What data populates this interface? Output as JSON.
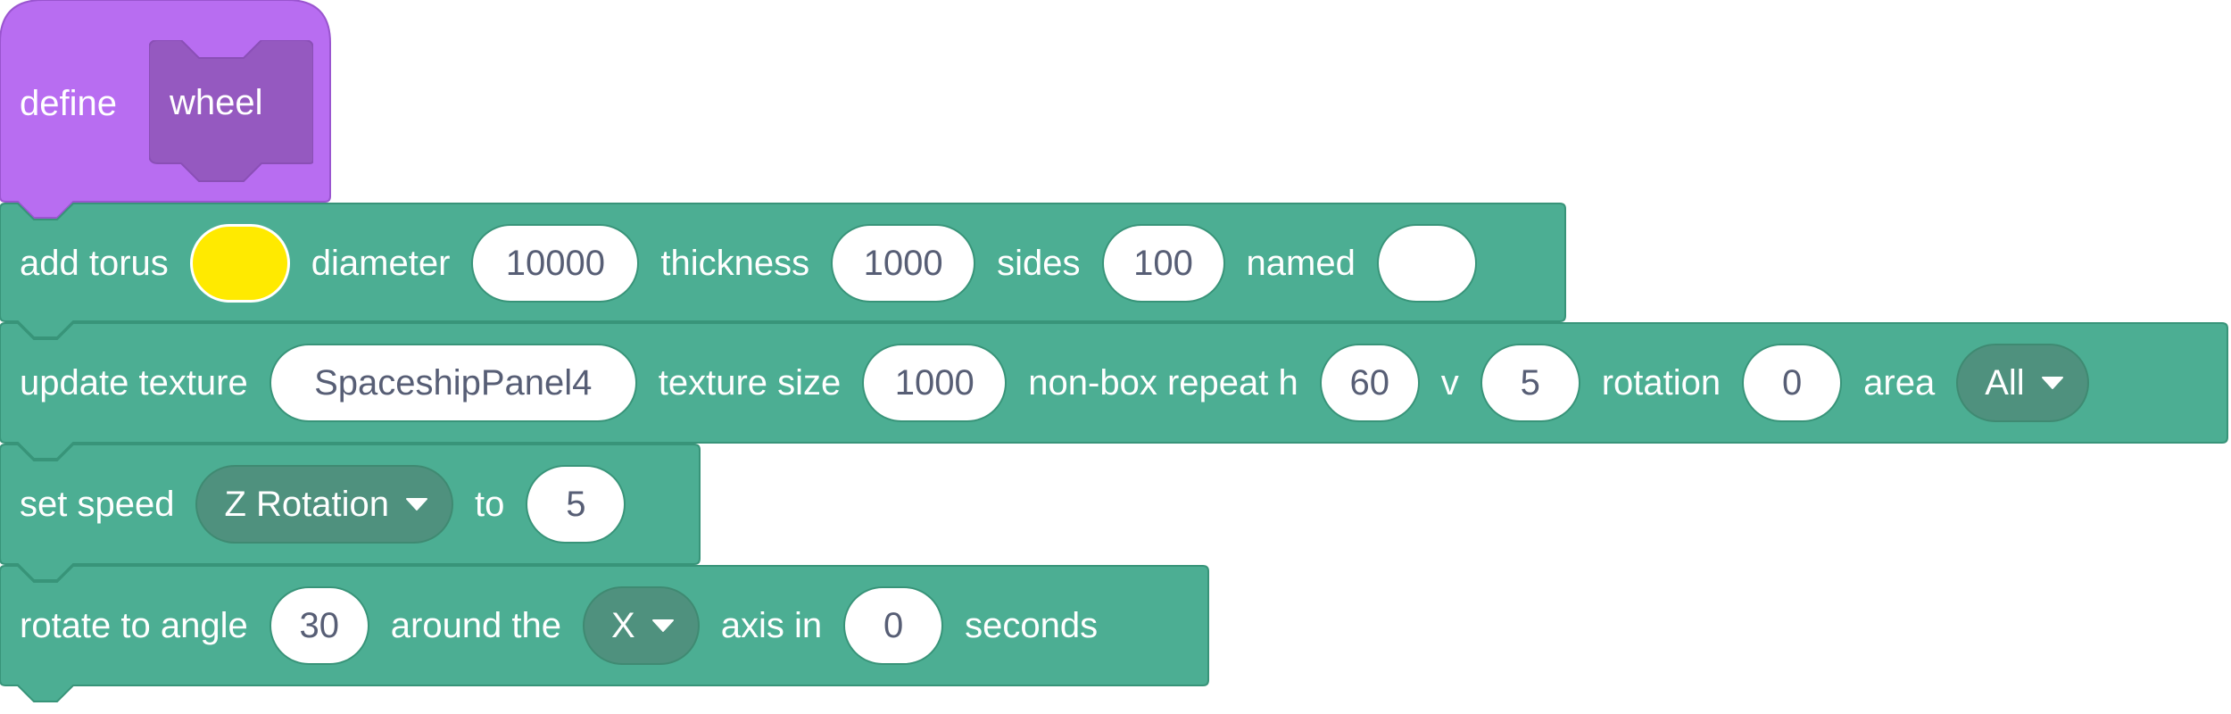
{
  "colors": {
    "define_block": "#b86df1",
    "define_border": "#9a55cf",
    "param_reporter": "#9559c0",
    "motion_block": "#4cae93",
    "motion_border": "#389479",
    "dropdown_fill": "#4f917e",
    "field_text": "#575e75",
    "torus_color": "#ffea00"
  },
  "define": {
    "label": "define",
    "param": "wheel"
  },
  "add_torus": {
    "label": "add torus",
    "color_value": "#ffea00",
    "diameter_label": "diameter",
    "diameter": "10000",
    "thickness_label": "thickness",
    "thickness": "1000",
    "sides_label": "sides",
    "sides": "100",
    "named_label": "named",
    "named": ""
  },
  "update_texture": {
    "label": "update texture",
    "texture": "SpaceshipPanel4",
    "size_label": "texture size",
    "size": "1000",
    "repeat_label": "non-box repeat h",
    "repeat_h": "60",
    "v_label": "v",
    "repeat_v": "5",
    "rotation_label": "rotation",
    "rotation": "0",
    "area_label": "area",
    "area": "All"
  },
  "set_speed": {
    "label": "set speed",
    "property": "Z Rotation",
    "to_label": "to",
    "value": "5"
  },
  "rotate": {
    "label": "rotate to angle",
    "angle": "30",
    "around_label": "around the",
    "axis": "X",
    "axis_in_label": "axis in",
    "seconds": "0",
    "seconds_label": "seconds"
  }
}
